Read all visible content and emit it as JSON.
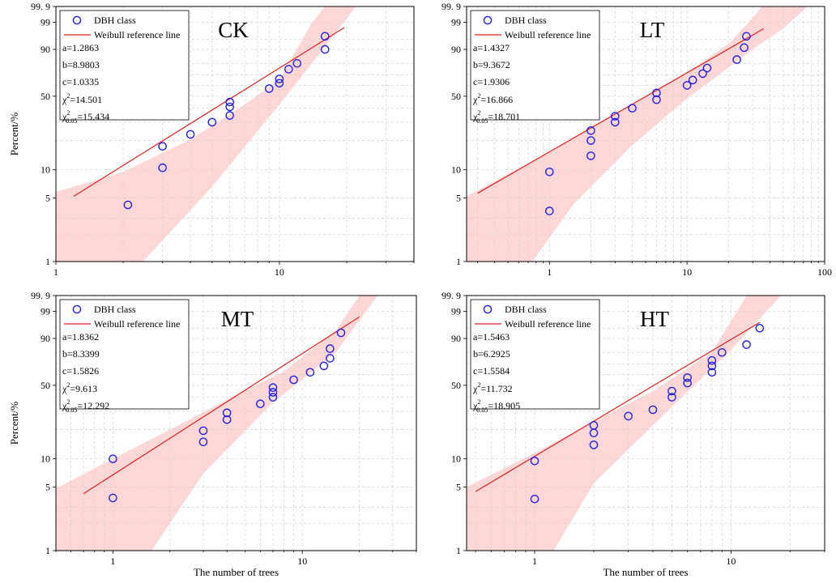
{
  "chart_data": [
    {
      "type": "scatter",
      "title": "CK",
      "xlabel": "",
      "ylabel": "Percent/%",
      "xscale": "log",
      "yscale": "weibull",
      "xlim": [
        1,
        40
      ],
      "ylim": [
        1,
        99.9
      ],
      "xticks": [
        {
          "value": 1,
          "label": "1"
        },
        {
          "value": 10,
          "label": "10"
        }
      ],
      "yticks": [
        {
          "value": 1,
          "label": "1"
        },
        {
          "value": 5,
          "label": "5"
        },
        {
          "value": 10,
          "label": "10"
        },
        {
          "value": 50,
          "label": "50"
        },
        {
          "value": 90,
          "label": "90"
        },
        {
          "value": 99,
          "label": "99"
        },
        {
          "value": 99.9,
          "label": "99. 9"
        }
      ],
      "grid": true,
      "legend": {
        "position": "top-left",
        "entries": [
          "DBH class",
          "Weibull reference line"
        ]
      },
      "stats": {
        "a": "a=1.2863",
        "b": "b=8.9803",
        "c": "c=1.0335",
        "chi2": "=14.501",
        "chi2_crit": "=15.434",
        "chi_symbol": "χ",
        "sup": "2",
        "sub": "0.05"
      },
      "series": [
        {
          "name": "DBH class",
          "type": "scatter",
          "color": "#1f1fe0",
          "points": [
            [
              2.1,
              4.2
            ],
            [
              3.0,
              10.5
            ],
            [
              3.0,
              17.5
            ],
            [
              4.0,
              23.0
            ],
            [
              5.0,
              30.0
            ],
            [
              6.0,
              34.5
            ],
            [
              6.0,
              41.0
            ],
            [
              6.0,
              45.0
            ],
            [
              9.0,
              57.0
            ],
            [
              10.0,
              62.0
            ],
            [
              10.0,
              66.0
            ],
            [
              11.0,
              75.0
            ],
            [
              12.0,
              80.0
            ],
            [
              16.0,
              90.0
            ],
            [
              16.0,
              96.0
            ]
          ]
        },
        {
          "name": "Weibull reference line",
          "type": "line",
          "color": "#e02020",
          "range": [
            1.2,
            19.5
          ]
        }
      ],
      "ref_line": {
        "beta": 1.55,
        "eta": 7.95
      },
      "band": {
        "color": "#ffc9c9",
        "lower": [
          [
            1.0,
            1.0
          ],
          [
            2.45,
            1.0
          ],
          [
            5.0,
            6.6
          ],
          [
            10.0,
            43.0
          ],
          [
            17.0,
            95.0
          ],
          [
            22.0,
            99.9
          ],
          [
            30.0,
            99.9
          ]
        ],
        "upper": [
          [
            1.0,
            5.8
          ],
          [
            2.0,
            9.5
          ],
          [
            4.0,
            20.5
          ],
          [
            7.0,
            43.0
          ],
          [
            10.0,
            65.0
          ],
          [
            14.0,
            99.0
          ],
          [
            16.0,
            99.9
          ],
          [
            30.0,
            99.9
          ]
        ]
      }
    },
    {
      "type": "scatter",
      "title": "LT",
      "xlabel": "",
      "ylabel": "",
      "xscale": "log",
      "yscale": "weibull",
      "xlim": [
        0.25,
        100
      ],
      "ylim": [
        1,
        99.9
      ],
      "xticks": [
        {
          "value": 1,
          "label": "1"
        },
        {
          "value": 10,
          "label": "10"
        },
        {
          "value": 100,
          "label": "100"
        }
      ],
      "yticks": [
        {
          "value": 1,
          "label": "1"
        },
        {
          "value": 5,
          "label": "5"
        },
        {
          "value": 10,
          "label": "10"
        },
        {
          "value": 50,
          "label": "50"
        },
        {
          "value": 90,
          "label": "90"
        },
        {
          "value": 99,
          "label": "99"
        },
        {
          "value": 99.9,
          "label": "99. 9"
        }
      ],
      "grid": true,
      "legend": {
        "position": "top-left",
        "entries": [
          "DBH class",
          "Weibull reference line"
        ]
      },
      "stats": {
        "a": "a=1.4327",
        "b": "b=9.3672",
        "c": "c=1.9306",
        "chi2": "=16.866",
        "chi2_crit": "=18.701",
        "chi_symbol": "χ",
        "sup": "2",
        "sub": "0.05"
      },
      "series": [
        {
          "name": "DBH class",
          "type": "scatter",
          "color": "#1f1fe0",
          "points": [
            [
              1.0,
              3.6
            ],
            [
              1.0,
              9.5
            ],
            [
              2.0,
              14.0
            ],
            [
              2.0,
              20.0
            ],
            [
              2.0,
              25.0
            ],
            [
              3.0,
              30.0
            ],
            [
              3.0,
              34.0
            ],
            [
              4.0,
              40.0
            ],
            [
              6.0,
              47.0
            ],
            [
              6.0,
              53.0
            ],
            [
              10.0,
              60.0
            ],
            [
              11.0,
              65.0
            ],
            [
              13.0,
              71.0
            ],
            [
              14.0,
              76.0
            ],
            [
              23.0,
              83.0
            ],
            [
              26.0,
              91.0
            ],
            [
              27.0,
              96.0
            ]
          ]
        },
        {
          "name": "Weibull reference line",
          "type": "line",
          "color": "#e02020",
          "range": [
            0.3,
            36.0
          ]
        }
      ],
      "ref_line": {
        "beta": 0.88,
        "eta": 7.66
      },
      "band": {
        "color": "#ffc9c9",
        "lower": [
          [
            0.25,
            1.0
          ],
          [
            0.75,
            1.0
          ],
          [
            1.5,
            4.3
          ],
          [
            4.0,
            18.0
          ],
          [
            10.0,
            48.0
          ],
          [
            30.0,
            90.0
          ],
          [
            50.0,
            98.0
          ],
          [
            75.0,
            99.9
          ],
          [
            100.0,
            99.9
          ]
        ],
        "upper": [
          [
            0.25,
            5.2
          ],
          [
            0.5,
            9.0
          ],
          [
            1.0,
            15.0
          ],
          [
            2.0,
            27.0
          ],
          [
            5.0,
            50.0
          ],
          [
            10.0,
            72.0
          ],
          [
            20.0,
            93.0
          ],
          [
            28.0,
            99.0
          ],
          [
            35.0,
            99.9
          ],
          [
            100.0,
            99.9
          ]
        ]
      }
    },
    {
      "type": "scatter",
      "title": "MT",
      "xlabel": "The number of trees",
      "ylabel": "Percent/%",
      "xscale": "log",
      "yscale": "weibull",
      "xlim": [
        0.5,
        40
      ],
      "ylim": [
        1,
        99.9
      ],
      "xticks": [
        {
          "value": 1,
          "label": "1"
        },
        {
          "value": 10,
          "label": "10"
        }
      ],
      "yticks": [
        {
          "value": 1,
          "label": "1"
        },
        {
          "value": 5,
          "label": "5"
        },
        {
          "value": 10,
          "label": "10"
        },
        {
          "value": 50,
          "label": "50"
        },
        {
          "value": 90,
          "label": "90"
        },
        {
          "value": 99,
          "label": "99"
        },
        {
          "value": 99.9,
          "label": "99. 9"
        }
      ],
      "grid": true,
      "legend": {
        "position": "top-left",
        "entries": [
          "DBH class",
          "Weibull reference line"
        ]
      },
      "stats": {
        "a": "a=1.8362",
        "b": "b=8.3399",
        "c": "c=1.5826",
        "chi2": "=9.613",
        "chi2_crit": "=12.292",
        "chi_symbol": "χ",
        "sup": "2",
        "sub": "0.05"
      },
      "series": [
        {
          "name": "DBH class",
          "type": "scatter",
          "color": "#1f1fe0",
          "points": [
            [
              1.0,
              3.8
            ],
            [
              1.0,
              10.0
            ],
            [
              3.0,
              15.0
            ],
            [
              3.0,
              19.5
            ],
            [
              4.0,
              25.0
            ],
            [
              4.0,
              29.0
            ],
            [
              6.0,
              35.0
            ],
            [
              7.0,
              40.0
            ],
            [
              7.0,
              44.0
            ],
            [
              7.0,
              48.0
            ],
            [
              9.0,
              55.0
            ],
            [
              11.0,
              62.0
            ],
            [
              13.0,
              68.0
            ],
            [
              14.0,
              75.0
            ],
            [
              14.0,
              83.0
            ],
            [
              16.0,
              93.0
            ]
          ]
        },
        {
          "name": "Weibull reference line",
          "type": "line",
          "color": "#e02020",
          "range": [
            0.7,
            20.0
          ]
        }
      ],
      "ref_line": {
        "beta": 1.35,
        "eta": 7.17
      },
      "band": {
        "color": "#ffc9c9",
        "lower": [
          [
            0.5,
            1.0
          ],
          [
            1.6,
            1.0
          ],
          [
            3.0,
            7.0
          ],
          [
            7.0,
            36.0
          ],
          [
            15.0,
            80.0
          ],
          [
            25.0,
            99.9
          ],
          [
            40.0,
            99.9
          ]
        ],
        "upper": [
          [
            0.5,
            4.8
          ],
          [
            1.0,
            10.0
          ],
          [
            2.0,
            20.0
          ],
          [
            4.0,
            38.0
          ],
          [
            8.0,
            63.0
          ],
          [
            15.0,
            94.0
          ],
          [
            20.0,
            99.9
          ],
          [
            40.0,
            99.9
          ]
        ]
      }
    },
    {
      "type": "scatter",
      "title": "HT",
      "xlabel": "The number of trees",
      "ylabel": "",
      "xscale": "log",
      "yscale": "weibull",
      "xlim": [
        0.45,
        30
      ],
      "ylim": [
        1,
        99.9
      ],
      "xticks": [
        {
          "value": 1,
          "label": "1"
        },
        {
          "value": 10,
          "label": "10"
        }
      ],
      "yticks": [
        {
          "value": 1,
          "label": "1"
        },
        {
          "value": 5,
          "label": "5"
        },
        {
          "value": 10,
          "label": "10"
        },
        {
          "value": 50,
          "label": "50"
        },
        {
          "value": 90,
          "label": "90"
        },
        {
          "value": 99,
          "label": "99"
        },
        {
          "value": 99.9,
          "label": "99. 9"
        }
      ],
      "grid": true,
      "legend": {
        "position": "top-left",
        "entries": [
          "DBH class",
          "Weibull reference line"
        ]
      },
      "stats": {
        "a": "a=1.5463",
        "b": "b=6.2925",
        "c": "c=1.5584",
        "chi2": "=11.732",
        "chi2_crit": "=18.905",
        "chi_symbol": "χ",
        "sup": "2",
        "sub": "0.05"
      },
      "series": [
        {
          "name": "DBH class",
          "type": "scatter",
          "color": "#1f1fe0",
          "points": [
            [
              1.0,
              3.7
            ],
            [
              1.0,
              9.5
            ],
            [
              2.0,
              14.0
            ],
            [
              2.0,
              18.5
            ],
            [
              2.0,
              22.0
            ],
            [
              3.0,
              27.0
            ],
            [
              4.0,
              31.0
            ],
            [
              5.0,
              40.0
            ],
            [
              5.0,
              45.0
            ],
            [
              6.0,
              52.0
            ],
            [
              6.0,
              57.0
            ],
            [
              8.0,
              62.0
            ],
            [
              8.0,
              68.0
            ],
            [
              8.0,
              73.0
            ],
            [
              9.0,
              80.0
            ],
            [
              12.0,
              86.0
            ],
            [
              14.0,
              95.0
            ]
          ]
        },
        {
          "name": "Weibull reference line",
          "type": "line",
          "color": "#e02020",
          "range": [
            0.5,
            14.0
          ]
        }
      ],
      "ref_line": {
        "beta": 1.3,
        "eta": 5.37
      },
      "band": {
        "color": "#ffc9c9",
        "lower": [
          [
            0.45,
            1.0
          ],
          [
            1.25,
            1.0
          ],
          [
            2.0,
            5.5
          ],
          [
            5.0,
            33.0
          ],
          [
            10.0,
            82.0
          ],
          [
            18.0,
            99.9
          ],
          [
            30.0,
            99.9
          ]
        ],
        "upper": [
          [
            0.45,
            5.0
          ],
          [
            1.0,
            11.5
          ],
          [
            2.0,
            24.0
          ],
          [
            4.0,
            45.0
          ],
          [
            8.0,
            80.0
          ],
          [
            12.0,
            99.9
          ],
          [
            30.0,
            99.9
          ]
        ]
      }
    }
  ]
}
